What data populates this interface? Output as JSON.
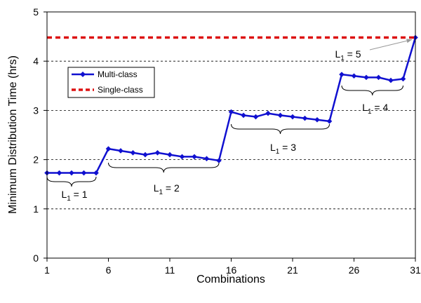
{
  "chart_data": {
    "type": "line",
    "title": "",
    "xlabel": "Combinations",
    "ylabel": "Minimum Distribution Time (hrs)",
    "xlim": [
      1,
      31
    ],
    "ylim": [
      0,
      5
    ],
    "x_ticks": [
      1,
      6,
      11,
      16,
      21,
      26,
      31
    ],
    "y_ticks": [
      0,
      1,
      2,
      3,
      4,
      5
    ],
    "grid": "horizontal dashed",
    "legend_position": "upper-left",
    "series": [
      {
        "name": "Multi-class",
        "style": "solid line with diamond markers",
        "color": "#1010d0",
        "x": [
          1,
          2,
          3,
          4,
          5,
          6,
          7,
          8,
          9,
          10,
          11,
          12,
          13,
          14,
          15,
          16,
          17,
          18,
          19,
          20,
          21,
          22,
          23,
          24,
          25,
          26,
          27,
          28,
          29,
          30,
          31
        ],
        "y": [
          1.73,
          1.73,
          1.73,
          1.73,
          1.73,
          2.22,
          2.18,
          2.14,
          2.1,
          2.14,
          2.1,
          2.06,
          2.06,
          2.02,
          1.98,
          2.97,
          2.9,
          2.87,
          2.94,
          2.9,
          2.87,
          2.84,
          2.81,
          2.78,
          3.73,
          3.7,
          3.67,
          3.67,
          3.61,
          3.64,
          4.48
        ]
      },
      {
        "name": "Single-class",
        "style": "dashed line",
        "color": "#dd1111",
        "x": [
          1,
          31
        ],
        "y": [
          4.48,
          4.48
        ]
      }
    ],
    "annotations": [
      {
        "label": "L",
        "sub": "1",
        "text": " = 1",
        "brace_x": [
          1,
          5
        ]
      },
      {
        "label": "L",
        "sub": "1",
        "text": " = 2",
        "brace_x": [
          6,
          15
        ]
      },
      {
        "label": "L",
        "sub": "1",
        "text": " = 3",
        "brace_x": [
          16,
          24
        ]
      },
      {
        "label": "L",
        "sub": "1",
        "text": " = 4",
        "brace_x": [
          25,
          30
        ]
      },
      {
        "label": "L",
        "sub": "1",
        "text": " = 5",
        "arrow_to_x": 31
      }
    ]
  }
}
